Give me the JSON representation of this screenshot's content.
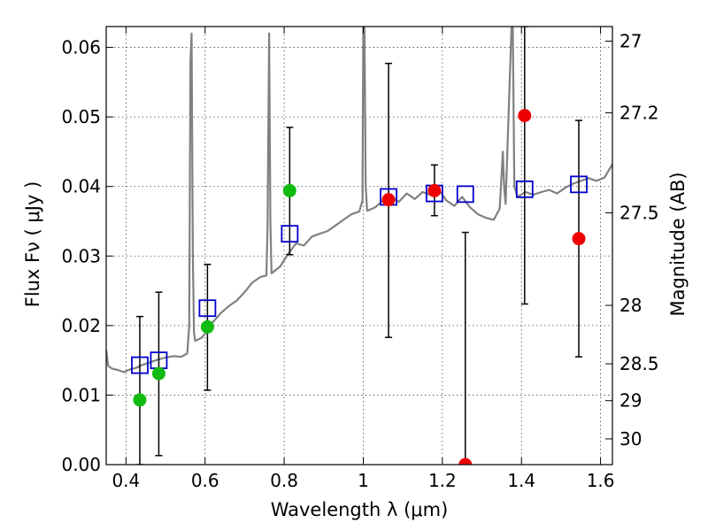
{
  "chart_data": {
    "type": "scatter",
    "xlabel": "Wavelength  λ (μm)",
    "ylabel": "Flux  Fν  ( μJy )",
    "ylabel_right": "Magnitude (AB)",
    "xlim": [
      0.35,
      1.63
    ],
    "ylim": [
      0.0,
      0.063
    ],
    "grid": true,
    "x_ticks": [
      0.4,
      0.6,
      0.8,
      1.0,
      1.2,
      1.4,
      1.6
    ],
    "x_tick_labels": [
      "0.4",
      "0.6",
      "0.8",
      "1",
      "1.2",
      "1.4",
      "1.6"
    ],
    "y_ticks": [
      0.0,
      0.01,
      0.02,
      0.03,
      0.04,
      0.05,
      0.06
    ],
    "y_tick_labels": [
      "0.00",
      "0.01",
      "0.02",
      "0.03",
      "0.04",
      "0.05",
      "0.06"
    ],
    "right_ticks": [
      {
        "flux": 0.0609,
        "label": "27"
      },
      {
        "flux": 0.0506,
        "label": "27.2"
      },
      {
        "flux": 0.0362,
        "label": "27.5"
      },
      {
        "flux": 0.0229,
        "label": "28"
      },
      {
        "flux": 0.0145,
        "label": "28.5"
      },
      {
        "flux": 0.0092,
        "label": "29"
      },
      {
        "flux": 0.0037,
        "label": "30"
      }
    ],
    "colors": {
      "sed": "#808080",
      "green": "#11bb11",
      "red": "#ee0000",
      "model": "#0000cc",
      "errorbar": "#000000"
    },
    "series": [
      {
        "kind": "line",
        "points": [
          [
            0.35,
            0.0165
          ],
          [
            0.355,
            0.0142
          ],
          [
            0.365,
            0.0138
          ],
          [
            0.38,
            0.0136
          ],
          [
            0.395,
            0.0133
          ],
          [
            0.41,
            0.0137
          ],
          [
            0.425,
            0.0139
          ],
          [
            0.44,
            0.0143
          ],
          [
            0.46,
            0.0147
          ],
          [
            0.48,
            0.0151
          ],
          [
            0.5,
            0.0154
          ],
          [
            0.52,
            0.0156
          ],
          [
            0.54,
            0.0155
          ],
          [
            0.555,
            0.016
          ],
          [
            0.56,
            0.02
          ],
          [
            0.563,
            0.058
          ],
          [
            0.566,
            0.062
          ],
          [
            0.569,
            0.03
          ],
          [
            0.572,
            0.019
          ],
          [
            0.575,
            0.0178
          ],
          [
            0.59,
            0.0182
          ],
          [
            0.6,
            0.0188
          ],
          [
            0.62,
            0.0205
          ],
          [
            0.64,
            0.0218
          ],
          [
            0.66,
            0.0228
          ],
          [
            0.68,
            0.0236
          ],
          [
            0.7,
            0.0248
          ],
          [
            0.72,
            0.0262
          ],
          [
            0.74,
            0.027
          ],
          [
            0.755,
            0.0272
          ],
          [
            0.758,
            0.034
          ],
          [
            0.762,
            0.062
          ],
          [
            0.765,
            0.035
          ],
          [
            0.768,
            0.0275
          ],
          [
            0.79,
            0.0285
          ],
          [
            0.81,
            0.0303
          ],
          [
            0.83,
            0.0318
          ],
          [
            0.85,
            0.0315
          ],
          [
            0.87,
            0.0328
          ],
          [
            0.89,
            0.0332
          ],
          [
            0.91,
            0.0336
          ],
          [
            0.93,
            0.0344
          ],
          [
            0.95,
            0.0352
          ],
          [
            0.97,
            0.036
          ],
          [
            0.99,
            0.0364
          ],
          [
            0.998,
            0.038
          ],
          [
            1.0,
            0.063
          ],
          [
            1.003,
            0.063
          ],
          [
            1.006,
            0.04
          ],
          [
            1.01,
            0.0365
          ],
          [
            1.03,
            0.037
          ],
          [
            1.05,
            0.038
          ],
          [
            1.07,
            0.0385
          ],
          [
            1.09,
            0.0378
          ],
          [
            1.11,
            0.039
          ],
          [
            1.13,
            0.0382
          ],
          [
            1.15,
            0.0392
          ],
          [
            1.17,
            0.0388
          ],
          [
            1.19,
            0.0396
          ],
          [
            1.21,
            0.038
          ],
          [
            1.23,
            0.0372
          ],
          [
            1.25,
            0.0385
          ],
          [
            1.27,
            0.037
          ],
          [
            1.29,
            0.036
          ],
          [
            1.31,
            0.0355
          ],
          [
            1.33,
            0.0352
          ],
          [
            1.345,
            0.0368
          ],
          [
            1.35,
            0.042
          ],
          [
            1.353,
            0.045
          ],
          [
            1.356,
            0.04
          ],
          [
            1.36,
            0.0375
          ],
          [
            1.375,
            0.063
          ],
          [
            1.378,
            0.063
          ],
          [
            1.382,
            0.04
          ],
          [
            1.39,
            0.0385
          ],
          [
            1.41,
            0.0392
          ],
          [
            1.43,
            0.0388
          ],
          [
            1.45,
            0.0392
          ],
          [
            1.47,
            0.0395
          ],
          [
            1.49,
            0.039
          ],
          [
            1.51,
            0.0398
          ],
          [
            1.53,
            0.0404
          ],
          [
            1.55,
            0.0408
          ],
          [
            1.57,
            0.0412
          ],
          [
            1.59,
            0.0408
          ],
          [
            1.61,
            0.0413
          ],
          [
            1.63,
            0.0432
          ]
        ]
      },
      {
        "kind": "errorbars",
        "points": [
          {
            "x": 0.435,
            "y": 0.0093,
            "lo": 0.0,
            "hi": 0.0213
          },
          {
            "x": 0.483,
            "y": 0.0131,
            "lo": 0.0013,
            "hi": 0.0248
          },
          {
            "x": 0.606,
            "y": 0.0198,
            "lo": 0.0107,
            "hi": 0.0288
          },
          {
            "x": 0.814,
            "y": 0.0394,
            "lo": 0.0302,
            "hi": 0.0485
          },
          {
            "x": 1.064,
            "y": 0.0381,
            "lo": 0.0183,
            "hi": 0.0577
          },
          {
            "x": 1.18,
            "y": 0.0394,
            "lo": 0.0358,
            "hi": 0.0431
          },
          {
            "x": 1.258,
            "y": 0.0,
            "lo": 0.0,
            "hi": 0.0334
          },
          {
            "x": 1.408,
            "y": 0.0502,
            "lo": 0.0231,
            "hi": 0.063
          },
          {
            "x": 1.545,
            "y": 0.0325,
            "lo": 0.0155,
            "hi": 0.0495
          }
        ]
      },
      {
        "kind": "model-squares",
        "points": [
          [
            0.435,
            0.0143
          ],
          [
            0.483,
            0.015
          ],
          [
            0.606,
            0.0225
          ],
          [
            0.814,
            0.0332
          ],
          [
            1.064,
            0.0385
          ],
          [
            1.18,
            0.039
          ],
          [
            1.258,
            0.0389
          ],
          [
            1.408,
            0.0396
          ],
          [
            1.545,
            0.0403
          ]
        ]
      },
      {
        "kind": "green-points",
        "points": [
          [
            0.435,
            0.0093
          ],
          [
            0.483,
            0.0131
          ],
          [
            0.606,
            0.0198
          ],
          [
            0.814,
            0.0394
          ]
        ]
      },
      {
        "kind": "red-points",
        "points": [
          [
            1.064,
            0.0381
          ],
          [
            1.18,
            0.0394
          ],
          [
            1.258,
            0.0
          ],
          [
            1.408,
            0.0502
          ],
          [
            1.545,
            0.0325
          ]
        ]
      }
    ]
  }
}
